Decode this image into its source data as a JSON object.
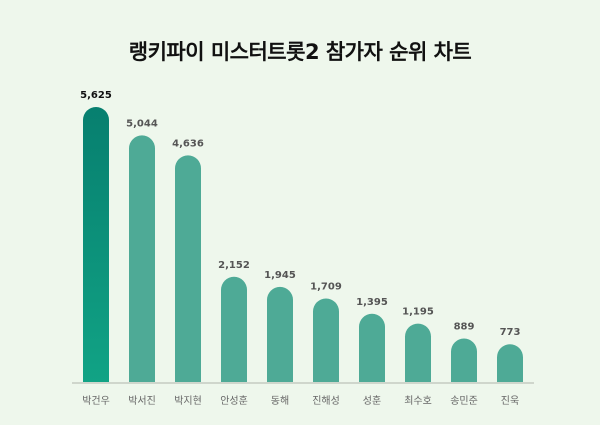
{
  "chart_data": {
    "type": "bar",
    "title": "랭키파이 미스터트롯2 참가자 순위 차트",
    "categories": [
      "박건우",
      "박서진",
      "박지현",
      "안성훈",
      "동해",
      "진해성",
      "성훈",
      "최수호",
      "송민준",
      "진욱"
    ],
    "values": [
      5625,
      5044,
      4636,
      2152,
      1945,
      1709,
      1395,
      1195,
      889,
      773
    ],
    "value_labels": [
      "5,625",
      "5,044",
      "4,636",
      "2,152",
      "1,945",
      "1,709",
      "1,395",
      "1,195",
      "889",
      "773"
    ],
    "xlabel": "",
    "ylabel": "",
    "ylim": [
      0,
      5625
    ],
    "grid": false,
    "colors": {
      "top": "#0a8a72",
      "other": "#4eaa96",
      "axis": "#cfd6cc"
    }
  }
}
